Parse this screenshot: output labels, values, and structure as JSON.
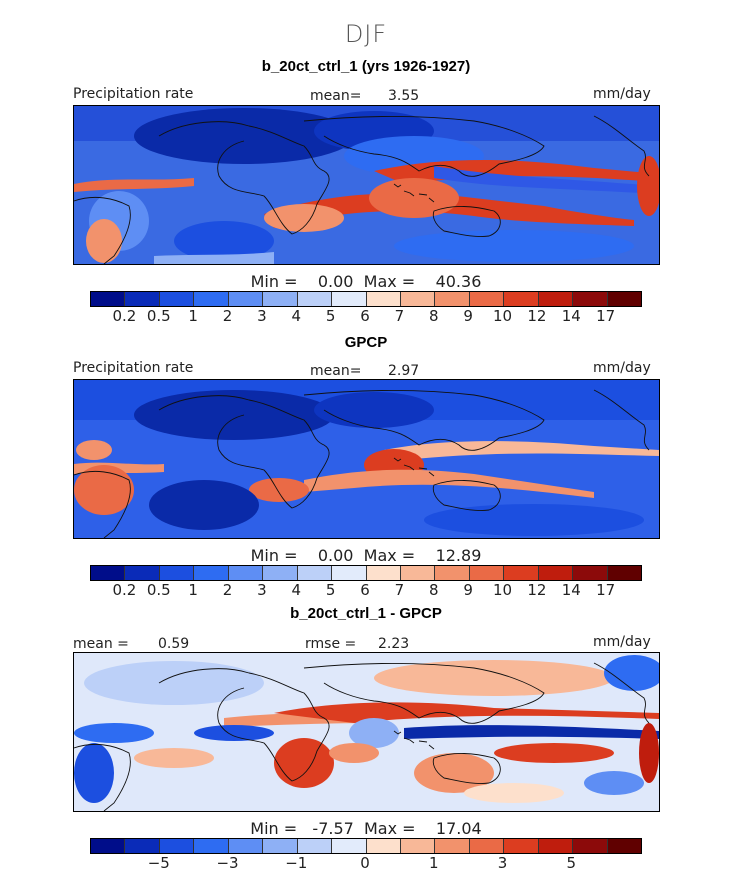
{
  "page_title": "DJF",
  "panels": [
    {
      "title": "b_20ct_ctrl_1 (yrs 1926-1927)",
      "left_label": "Precipitation rate",
      "mid_label": "mean=",
      "mid_value": "3.55",
      "right_label": "mm/day",
      "min_label": "Min =",
      "min_value": "0.00",
      "max_label": "Max =",
      "max_value": "40.36",
      "tick_labels": [
        "0.2",
        "0.5",
        "1",
        "2",
        "3",
        "4",
        "5",
        "6",
        "7",
        "8",
        "9",
        "10",
        "12",
        "14",
        "17"
      ]
    },
    {
      "title": "GPCP",
      "left_label": "Precipitation rate",
      "mid_label": "mean=",
      "mid_value": "2.97",
      "right_label": "mm/day",
      "min_label": "Min =",
      "min_value": "0.00",
      "max_label": "Max =",
      "max_value": "12.89",
      "tick_labels": [
        "0.2",
        "0.5",
        "1",
        "2",
        "3",
        "4",
        "5",
        "6",
        "7",
        "8",
        "9",
        "10",
        "12",
        "14",
        "17"
      ]
    },
    {
      "title": "b_20ct_ctrl_1 - GPCP",
      "left_label": "mean =",
      "left_value": "0.59",
      "mid_label": "rmse =",
      "mid_value": "2.23",
      "right_label": "mm/day",
      "min_label": "Min =",
      "min_value": "-7.57",
      "max_label": "Max =",
      "max_value": "17.04",
      "tick_labels": [
        "−5",
        "−3",
        "−1",
        "0",
        "1",
        "3",
        "5"
      ]
    }
  ],
  "colorbar_colors": [
    "#000d8a",
    "#0a2bb8",
    "#1c4fe0",
    "#2e6cf2",
    "#5e8ef4",
    "#8eb0f5",
    "#bcd0f8",
    "#e2ebfb",
    "#fde0cc",
    "#f8b898",
    "#f2926c",
    "#ea6a46",
    "#dc3d20",
    "#bf1d0d",
    "#8c0a0a",
    "#600000"
  ]
}
